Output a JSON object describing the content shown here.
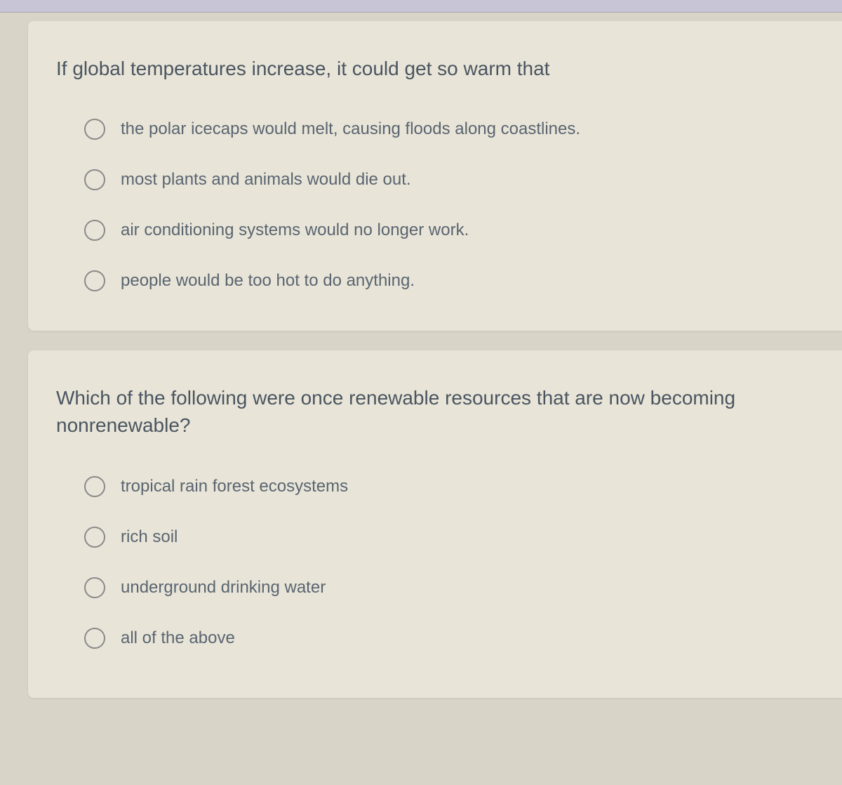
{
  "page": {
    "background_color": "#d8d4c8",
    "card_background_color": "#e8e4d8",
    "top_bar_color": "#c8c6d6",
    "question_text_color": "#4a5560",
    "option_text_color": "#5a6570",
    "radio_border_color": "#8a8a8a",
    "question_fontsize": 28,
    "option_fontsize": 24
  },
  "questions": [
    {
      "prompt": "If global temperatures increase, it could get so warm that",
      "options": [
        "the polar icecaps would melt, causing floods along coastlines.",
        "most plants and animals would die out.",
        "air conditioning systems would no longer work.",
        "people would be too hot to do anything."
      ]
    },
    {
      "prompt": "Which of the following were once renewable resources that are now becoming nonrenewable?",
      "options": [
        "tropical rain forest ecosystems",
        "rich soil",
        "underground drinking water",
        "all of the above"
      ]
    }
  ]
}
